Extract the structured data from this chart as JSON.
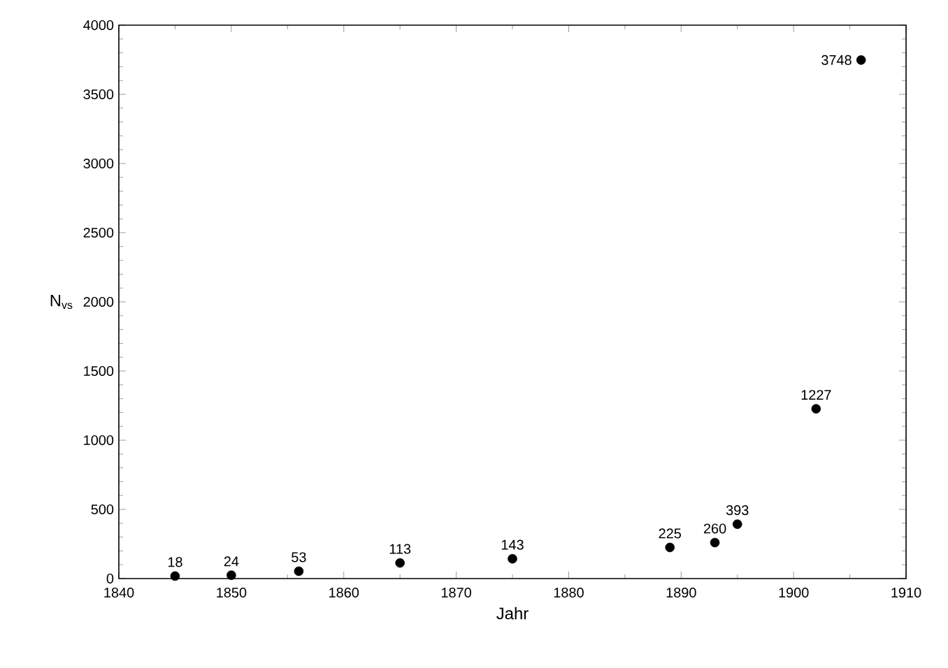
{
  "chart_data": {
    "type": "scatter",
    "xlabel": "Jahr",
    "ylabel": "N$_{vs}$",
    "x": [
      1845,
      1850,
      1856,
      1865,
      1875,
      1889,
      1893,
      1895,
      1902,
      1906
    ],
    "values": [
      18,
      24,
      53,
      113,
      143,
      225,
      260,
      393,
      1227,
      3748
    ],
    "color": "#000000",
    "marker": "circle",
    "data_labels": true,
    "xlim": [
      1840,
      1910
    ],
    "xticks": [
      1840,
      1850,
      1860,
      1870,
      1880,
      1890,
      1900,
      1910
    ],
    "ylim": [
      0,
      4000
    ],
    "yticks": [
      0,
      500,
      1000,
      1500,
      2000,
      2500,
      3000,
      3500,
      4000
    ]
  }
}
